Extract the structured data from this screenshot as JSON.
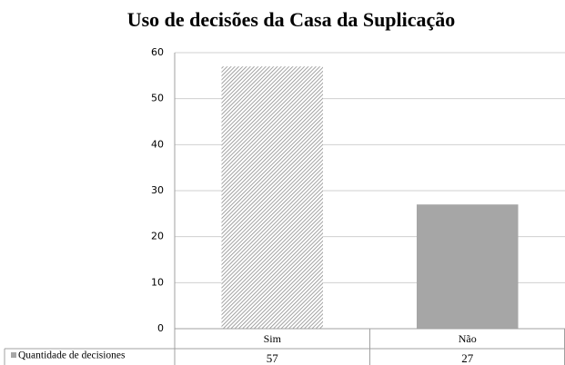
{
  "chart_data": {
    "type": "bar",
    "title": "Uso de decisões da Casa da Suplicação",
    "categories": [
      "Sim",
      "Não"
    ],
    "series": [
      {
        "name": "Quantidade de decisiones",
        "color": "#a6a6a6",
        "values": [
          57,
          27
        ]
      }
    ],
    "point_colors": [
      "#c8c8c8",
      "#a6a6a6"
    ],
    "point_fills": [
      "hatch",
      "solid"
    ],
    "ylim": [
      0,
      60
    ],
    "yticks": [
      0,
      10,
      20,
      30,
      40,
      50,
      60
    ],
    "grid": true,
    "data_table": true
  }
}
